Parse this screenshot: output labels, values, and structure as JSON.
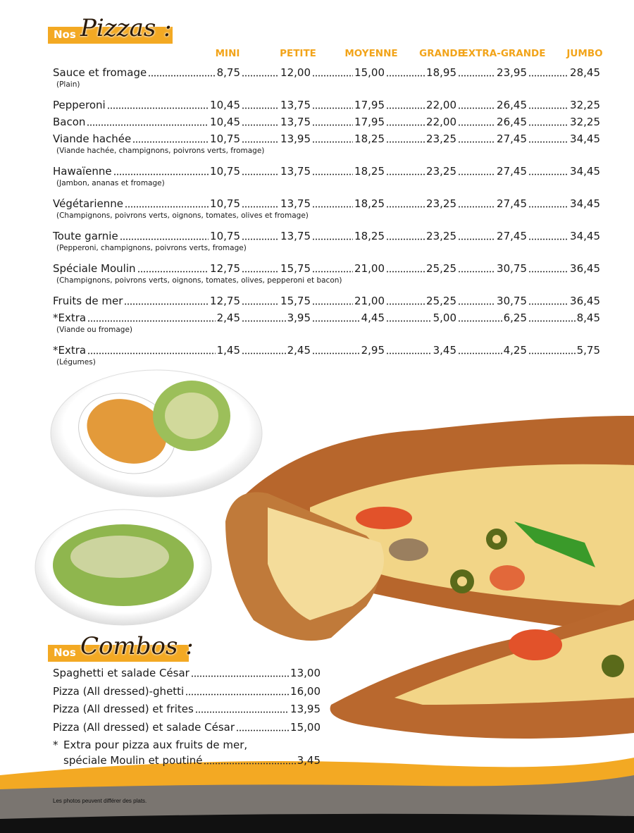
{
  "pizzas": {
    "heading_small": "Nos",
    "heading": "Pizzas :",
    "sizes": [
      "MINI",
      "PETITE",
      "MOYENNE",
      "GRANDE",
      "EXTRA-GRANDE",
      "JUMBO"
    ],
    "items": [
      {
        "name": "Sauce et fromage",
        "note": "(Plain)",
        "prices": [
          "8,75",
          "12,00",
          "15,00",
          "18,95",
          "23,95",
          "28,45"
        ]
      },
      {
        "name": "Pepperoni",
        "prices": [
          "10,45",
          "13,75",
          "17,95",
          "22,00",
          "26,45",
          "32,25"
        ]
      },
      {
        "name": "Bacon",
        "prices": [
          "10,45",
          "13,75",
          "17,95",
          "22,00",
          "26,45",
          "32,25"
        ]
      },
      {
        "name": "Viande hachée",
        "note": "(Viande hachée, champignons, poivrons verts, fromage)",
        "prices": [
          "10,75",
          "13,95",
          "18,25",
          "23,25",
          "27,45",
          "34,45"
        ]
      },
      {
        "name": "Hawaïenne",
        "note": "(Jambon, ananas et fromage)",
        "prices": [
          "10,75",
          "13,75",
          "18,25",
          "23,25",
          "27,45",
          "34,45"
        ]
      },
      {
        "name": "Végétarienne",
        "note": "(Champignons, poivrons verts, oignons, tomates, olives et fromage)",
        "prices": [
          "10,75",
          "13,75",
          "18,25",
          "23,25",
          "27,45",
          "34,45"
        ]
      },
      {
        "name": "Toute garnie",
        "note": "(Pepperoni, champignons, poivrons verts, fromage)",
        "prices": [
          "10,75",
          "13,75",
          "18,25",
          "23,25",
          "27,45",
          "34,45"
        ]
      },
      {
        "name": "Spéciale Moulin",
        "note": "(Champignons, poivrons verts, oignons, tomates, olives, pepperoni et bacon)",
        "prices": [
          "12,75",
          "15,75",
          "21,00",
          "25,25",
          "30,75",
          "36,45"
        ]
      },
      {
        "name": "Fruits de mer",
        "prices": [
          "12,75",
          "15,75",
          "21,00",
          "25,25",
          "30,75",
          "36,45"
        ]
      },
      {
        "name": "*Extra",
        "note": "(Viande ou fromage)",
        "prices": [
          "2,45",
          "3,95",
          "4,45",
          "5,00",
          "6,25",
          "8,45"
        ]
      },
      {
        "name": "*Extra",
        "note": "(Légumes)",
        "prices": [
          "1,45",
          "2,45",
          "2,95",
          "3,45",
          "4,25",
          "5,75"
        ]
      }
    ]
  },
  "combos": {
    "heading_small": "Nos",
    "heading": "Combos :",
    "items": [
      {
        "name": "Spaghetti et salade César",
        "price": "13,00"
      },
      {
        "name": "Pizza (All dressed)-ghetti",
        "price": "16,00"
      },
      {
        "name": "Pizza (All dressed) et frites",
        "price": "13,95"
      },
      {
        "name": "Pizza (All dressed) et salade César",
        "price": "15,00"
      }
    ],
    "extra": {
      "marker": "*",
      "lines": [
        "Extra pour pizza aux fruits de mer,",
        "spéciale Moulin et poutiné"
      ],
      "price": "3,45"
    }
  },
  "footer": {
    "note": "Les photos peuvent différer des plats."
  }
}
